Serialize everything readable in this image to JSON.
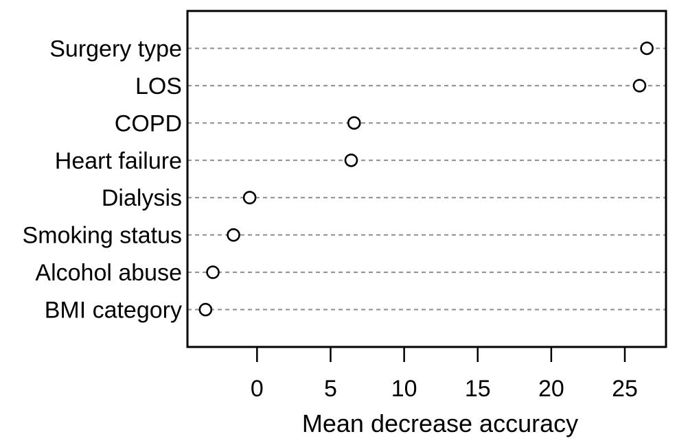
{
  "chart_data": {
    "type": "scatter",
    "subtype": "horizontal-dot-plot",
    "title": "",
    "xlabel": "Mean decrease accuracy",
    "ylabel": "",
    "categories": [
      "Surgery type",
      "LOS",
      "COPD",
      "Heart failure",
      "Dialysis",
      "Smoking status",
      "Alcohol abuse",
      "BMI category"
    ],
    "values": [
      26.5,
      26.0,
      6.6,
      6.4,
      -0.5,
      -1.6,
      -3.0,
      -3.5
    ],
    "x_ticks": [
      0,
      5,
      10,
      15,
      20,
      25
    ],
    "xlim": [
      -4.73,
      27.8
    ],
    "grid": "dashed horizontal line per category, full plot width",
    "legend": "none",
    "marker": {
      "shape": "open-circle",
      "fill": "#ffffff",
      "stroke": "#000000"
    },
    "colors": {
      "background": "#ffffff",
      "plot_border": "#000000",
      "grid_line": "#8c8c8c",
      "text": "#000000"
    }
  }
}
